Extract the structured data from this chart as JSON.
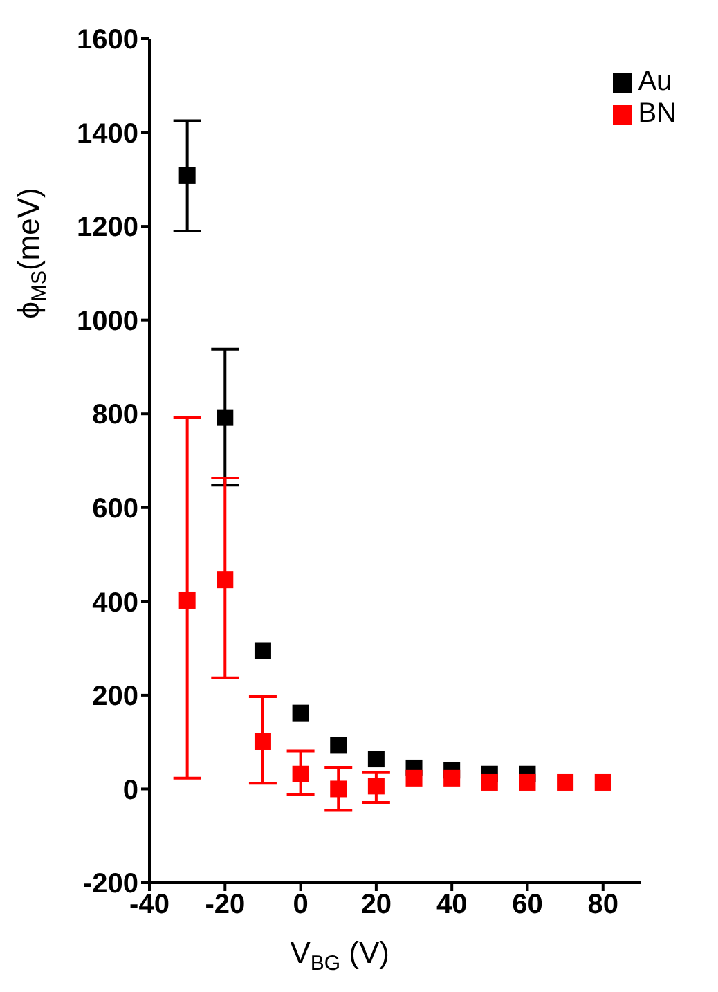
{
  "chart_data": {
    "type": "scatter",
    "xlabel": "V$_{BG}$ (V)",
    "ylabel": "ϕ$_{MS}$(meV)",
    "x": [
      -30,
      -20,
      -10,
      0,
      10,
      20,
      30,
      40,
      50,
      60,
      70,
      80
    ],
    "series": [
      {
        "name": "Au",
        "color": "#000000",
        "values": [
          1308,
          792,
          295,
          162,
          93,
          64,
          45,
          40,
          32,
          32,
          null,
          null
        ],
        "errors": [
          [
            1190,
            1425
          ],
          [
            648,
            938
          ],
          null,
          null,
          null,
          null,
          null,
          null,
          null,
          null,
          null,
          null
        ]
      },
      {
        "name": "BN",
        "color": "#ff0000",
        "values": [
          402,
          446,
          101,
          32,
          0,
          6,
          23,
          23,
          14,
          14,
          14,
          14
        ],
        "errors": [
          [
            23,
            792
          ],
          [
            237,
            663
          ],
          [
            12,
            197
          ],
          [
            -12,
            81
          ],
          [
            -46,
            46
          ],
          [
            -29,
            35
          ],
          null,
          null,
          null,
          null,
          null,
          null
        ]
      }
    ],
    "xlim": [
      -40,
      90
    ],
    "xticks": [
      -40,
      -20,
      0,
      20,
      40,
      60,
      80
    ],
    "ylim": [
      -200,
      1600
    ],
    "yticks": [
      -200,
      0,
      200,
      400,
      600,
      800,
      1000,
      1200,
      1400,
      1600
    ],
    "grid": false,
    "legend": "top right",
    "marker": "square"
  }
}
